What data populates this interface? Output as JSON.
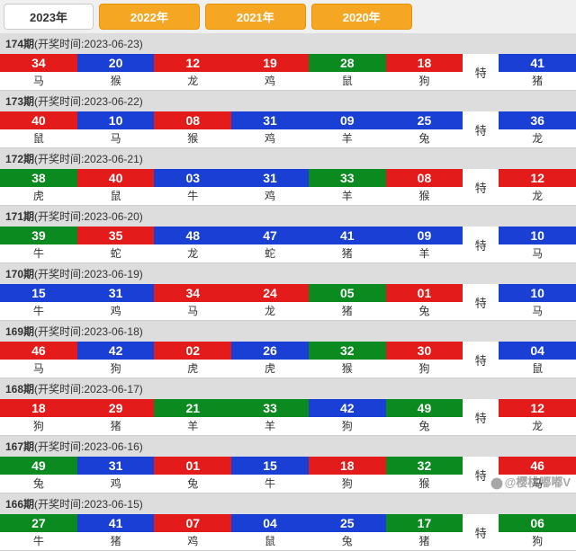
{
  "tabs": [
    {
      "label": "2023年",
      "active": true
    },
    {
      "label": "2022年",
      "active": false
    },
    {
      "label": "2021年",
      "active": false
    },
    {
      "label": "2020年",
      "active": false
    }
  ],
  "colors": {
    "red": "#e31b1b",
    "blue": "#1a3fd4",
    "green": "#0a8a1f"
  },
  "periods": [
    {
      "issue": "174期",
      "date": "2023-06-23",
      "balls": [
        {
          "n": "34",
          "z": "马",
          "c": "red"
        },
        {
          "n": "20",
          "z": "猴",
          "c": "blue"
        },
        {
          "n": "12",
          "z": "龙",
          "c": "red"
        },
        {
          "n": "19",
          "z": "鸡",
          "c": "red"
        },
        {
          "n": "28",
          "z": "鼠",
          "c": "green"
        },
        {
          "n": "18",
          "z": "狗",
          "c": "red"
        }
      ],
      "te": "特",
      "special": {
        "n": "41",
        "z": "猪",
        "c": "blue"
      }
    },
    {
      "issue": "173期",
      "date": "2023-06-22",
      "balls": [
        {
          "n": "40",
          "z": "鼠",
          "c": "red"
        },
        {
          "n": "10",
          "z": "马",
          "c": "blue"
        },
        {
          "n": "08",
          "z": "猴",
          "c": "red"
        },
        {
          "n": "31",
          "z": "鸡",
          "c": "blue"
        },
        {
          "n": "09",
          "z": "羊",
          "c": "blue"
        },
        {
          "n": "25",
          "z": "兔",
          "c": "blue"
        }
      ],
      "te": "特",
      "special": {
        "n": "36",
        "z": "龙",
        "c": "blue"
      }
    },
    {
      "issue": "172期",
      "date": "2023-06-21",
      "balls": [
        {
          "n": "38",
          "z": "虎",
          "c": "green"
        },
        {
          "n": "40",
          "z": "鼠",
          "c": "red"
        },
        {
          "n": "03",
          "z": "牛",
          "c": "blue"
        },
        {
          "n": "31",
          "z": "鸡",
          "c": "blue"
        },
        {
          "n": "33",
          "z": "羊",
          "c": "green"
        },
        {
          "n": "08",
          "z": "猴",
          "c": "red"
        }
      ],
      "te": "特",
      "special": {
        "n": "12",
        "z": "龙",
        "c": "red"
      }
    },
    {
      "issue": "171期",
      "date": "2023-06-20",
      "balls": [
        {
          "n": "39",
          "z": "牛",
          "c": "green"
        },
        {
          "n": "35",
          "z": "蛇",
          "c": "red"
        },
        {
          "n": "48",
          "z": "龙",
          "c": "blue"
        },
        {
          "n": "47",
          "z": "蛇",
          "c": "blue"
        },
        {
          "n": "41",
          "z": "猪",
          "c": "blue"
        },
        {
          "n": "09",
          "z": "羊",
          "c": "blue"
        }
      ],
      "te": "特",
      "special": {
        "n": "10",
        "z": "马",
        "c": "blue"
      }
    },
    {
      "issue": "170期",
      "date": "2023-06-19",
      "balls": [
        {
          "n": "15",
          "z": "牛",
          "c": "blue"
        },
        {
          "n": "31",
          "z": "鸡",
          "c": "blue"
        },
        {
          "n": "34",
          "z": "马",
          "c": "red"
        },
        {
          "n": "24",
          "z": "龙",
          "c": "red"
        },
        {
          "n": "05",
          "z": "猪",
          "c": "green"
        },
        {
          "n": "01",
          "z": "兔",
          "c": "red"
        }
      ],
      "te": "特",
      "special": {
        "n": "10",
        "z": "马",
        "c": "blue"
      }
    },
    {
      "issue": "169期",
      "date": "2023-06-18",
      "balls": [
        {
          "n": "46",
          "z": "马",
          "c": "red"
        },
        {
          "n": "42",
          "z": "狗",
          "c": "blue"
        },
        {
          "n": "02",
          "z": "虎",
          "c": "red"
        },
        {
          "n": "26",
          "z": "虎",
          "c": "blue"
        },
        {
          "n": "32",
          "z": "猴",
          "c": "green"
        },
        {
          "n": "30",
          "z": "狗",
          "c": "red"
        }
      ],
      "te": "特",
      "special": {
        "n": "04",
        "z": "鼠",
        "c": "blue"
      }
    },
    {
      "issue": "168期",
      "date": "2023-06-17",
      "balls": [
        {
          "n": "18",
          "z": "狗",
          "c": "red"
        },
        {
          "n": "29",
          "z": "猪",
          "c": "red"
        },
        {
          "n": "21",
          "z": "羊",
          "c": "green"
        },
        {
          "n": "33",
          "z": "羊",
          "c": "green"
        },
        {
          "n": "42",
          "z": "狗",
          "c": "blue"
        },
        {
          "n": "49",
          "z": "兔",
          "c": "green"
        }
      ],
      "te": "特",
      "special": {
        "n": "12",
        "z": "龙",
        "c": "red"
      }
    },
    {
      "issue": "167期",
      "date": "2023-06-16",
      "balls": [
        {
          "n": "49",
          "z": "兔",
          "c": "green"
        },
        {
          "n": "31",
          "z": "鸡",
          "c": "blue"
        },
        {
          "n": "01",
          "z": "兔",
          "c": "red"
        },
        {
          "n": "15",
          "z": "牛",
          "c": "blue"
        },
        {
          "n": "18",
          "z": "狗",
          "c": "red"
        },
        {
          "n": "32",
          "z": "猴",
          "c": "green"
        }
      ],
      "te": "特",
      "special": {
        "n": "46",
        "z": "马",
        "c": "red"
      }
    },
    {
      "issue": "166期",
      "date": "2023-06-15",
      "balls": [
        {
          "n": "27",
          "z": "牛",
          "c": "green"
        },
        {
          "n": "41",
          "z": "猪",
          "c": "blue"
        },
        {
          "n": "07",
          "z": "鸡",
          "c": "red"
        },
        {
          "n": "04",
          "z": "鼠",
          "c": "blue"
        },
        {
          "n": "25",
          "z": "兔",
          "c": "blue"
        },
        {
          "n": "17",
          "z": "猪",
          "c": "green"
        }
      ],
      "te": "特",
      "special": {
        "n": "06",
        "z": "狗",
        "c": "green"
      }
    }
  ],
  "watermark": "@樱桃嘟嘟V"
}
